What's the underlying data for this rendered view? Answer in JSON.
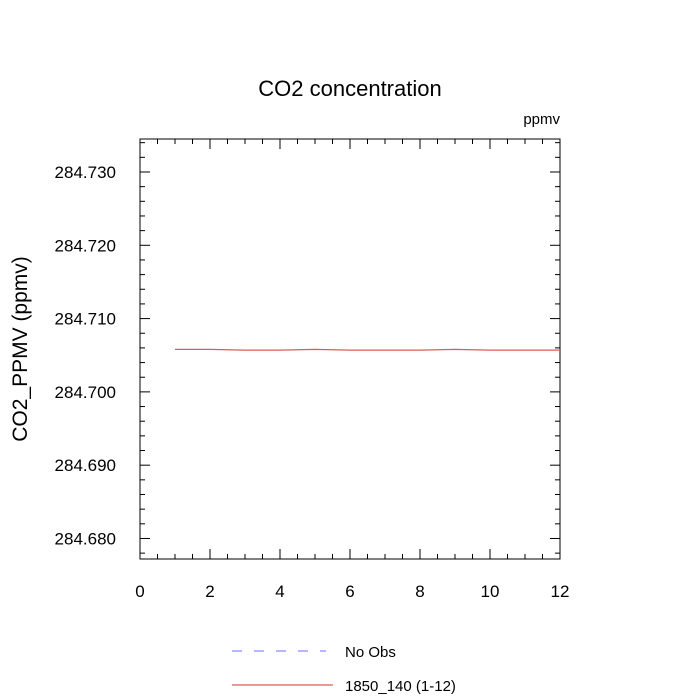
{
  "chart_data": {
    "type": "line",
    "title": "CO2 concentration",
    "units": "ppmv",
    "xlabel": "",
    "ylabel": "CO2_PPMV  (ppmv)",
    "xlim": [
      0,
      12
    ],
    "ylim": [
      284.6772,
      284.7345
    ],
    "x_ticks": [
      0,
      2,
      4,
      6,
      8,
      10,
      12
    ],
    "x_tick_labels": [
      "0",
      "2",
      "4",
      "6",
      "8",
      "10",
      "12"
    ],
    "y_ticks": [
      284.68,
      284.69,
      284.7,
      284.71,
      284.72,
      284.73
    ],
    "y_tick_labels": [
      "284.680",
      "284.690",
      "284.700",
      "284.710",
      "284.720",
      "284.730"
    ],
    "grid": false,
    "legend_position": "bottom",
    "series": [
      {
        "name": "No Obs",
        "style": "dashed",
        "color": "#8a8aff",
        "x": [],
        "y": []
      },
      {
        "name": "1850_140 (1-12)",
        "style": "solid",
        "color": "#e05a5a",
        "x": [
          1,
          2,
          3,
          4,
          5,
          6,
          7,
          8,
          9,
          10,
          11,
          12
        ],
        "y": [
          284.7058,
          284.7058,
          284.7057,
          284.7057,
          284.7058,
          284.7057,
          284.7057,
          284.7057,
          284.7058,
          284.7057,
          284.7057,
          284.7057
        ]
      }
    ]
  }
}
